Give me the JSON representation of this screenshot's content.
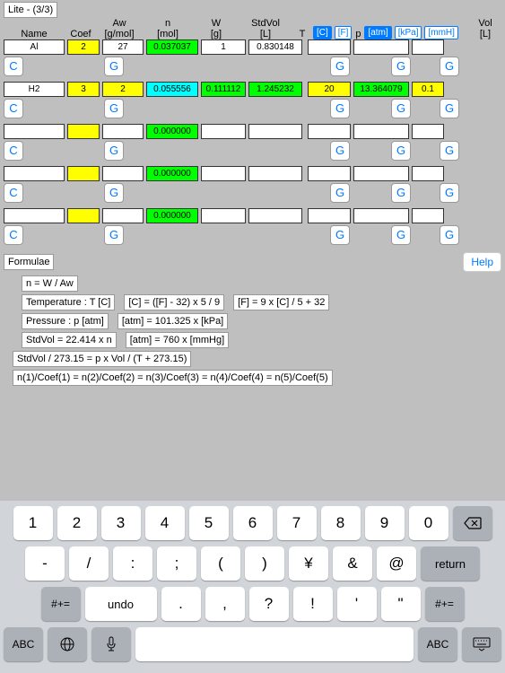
{
  "title": "Lite - (3/3)",
  "headers": {
    "name": "Name",
    "coef": "Coef",
    "aw": "Aw",
    "aw_unit": "[g/mol]",
    "n": "n",
    "n_unit": "[mol]",
    "w": "W",
    "w_unit": "[g]",
    "stdvol": "StdVol",
    "stdvol_unit": "[L]",
    "t": "T",
    "p": "p",
    "vol": "Vol",
    "vol_unit": "[L]"
  },
  "unit_buttons": {
    "c": "[C]",
    "f": "[F]",
    "atm": "[atm]",
    "kpa": "[kPa]",
    "mmhg": "[mmH]"
  },
  "rows": [
    {
      "name": "Al",
      "coef": "2",
      "aw": "27",
      "n": "0.037037",
      "w": "1",
      "stdvol": "0.830148",
      "t": "",
      "p": "",
      "vol": "",
      "coef_c": "yellow",
      "n_c": "green"
    },
    {
      "name": "H2",
      "coef": "3",
      "aw": "2",
      "n": "0.055556",
      "w": "0.111112",
      "stdvol": "1.245232",
      "t": "20",
      "p": "13.364079",
      "vol": "0.1",
      "coef_c": "yellow",
      "aw_c": "yellow",
      "n_c": "cyan",
      "w_c": "green",
      "stdvol_c": "green",
      "t_c": "yellow",
      "p_c": "green",
      "vol_c": "yellow"
    },
    {
      "name": "",
      "coef": "",
      "aw": "",
      "n": "0.000000",
      "w": "",
      "stdvol": "",
      "t": "",
      "p": "",
      "vol": "",
      "coef_c": "yellow",
      "n_c": "green"
    },
    {
      "name": "",
      "coef": "",
      "aw": "",
      "n": "0.000000",
      "w": "",
      "stdvol": "",
      "t": "",
      "p": "",
      "vol": "",
      "coef_c": "yellow",
      "n_c": "green"
    },
    {
      "name": "",
      "coef": "",
      "aw": "",
      "n": "0.000000",
      "w": "",
      "stdvol": "",
      "t": "",
      "p": "",
      "vol": "",
      "coef_c": "yellow",
      "n_c": "green"
    }
  ],
  "buttons": {
    "c": "C",
    "g": "G"
  },
  "formulae": {
    "title": "Formulae",
    "help": "Help",
    "f1": "n = W / Aw",
    "f2a": "Temperature  :  T [C]",
    "f2b": "[C] = ([F] - 32) x 5 / 9",
    "f2c": "[F] = 9 x [C] / 5 + 32",
    "f3a": "Pressure   :  p [atm]",
    "f3b": "[atm] = 101.325 x [kPa]",
    "f4a": "StdVol = 22.414 x n",
    "f4b": "[atm] = 760 x [mmHg]",
    "f5": "StdVol / 273.15 = p x Vol / (T + 273.15)",
    "f6": "n(1)/Coef(1) = n(2)/Coef(2) = n(3)/Coef(3) = n(4)/Coef(4) = n(5)/Coef(5)"
  },
  "keyboard": {
    "row1": [
      "1",
      "2",
      "3",
      "4",
      "5",
      "6",
      "7",
      "8",
      "9",
      "0"
    ],
    "row2": [
      "-",
      "/",
      ":",
      ";",
      "(",
      ")",
      "¥",
      "&",
      "@"
    ],
    "undo": "undo",
    "return": "return",
    "abc": "ABC",
    "shift": "#+=",
    "row3": [
      ".",
      ",",
      "?",
      "!",
      "'",
      "\""
    ]
  }
}
